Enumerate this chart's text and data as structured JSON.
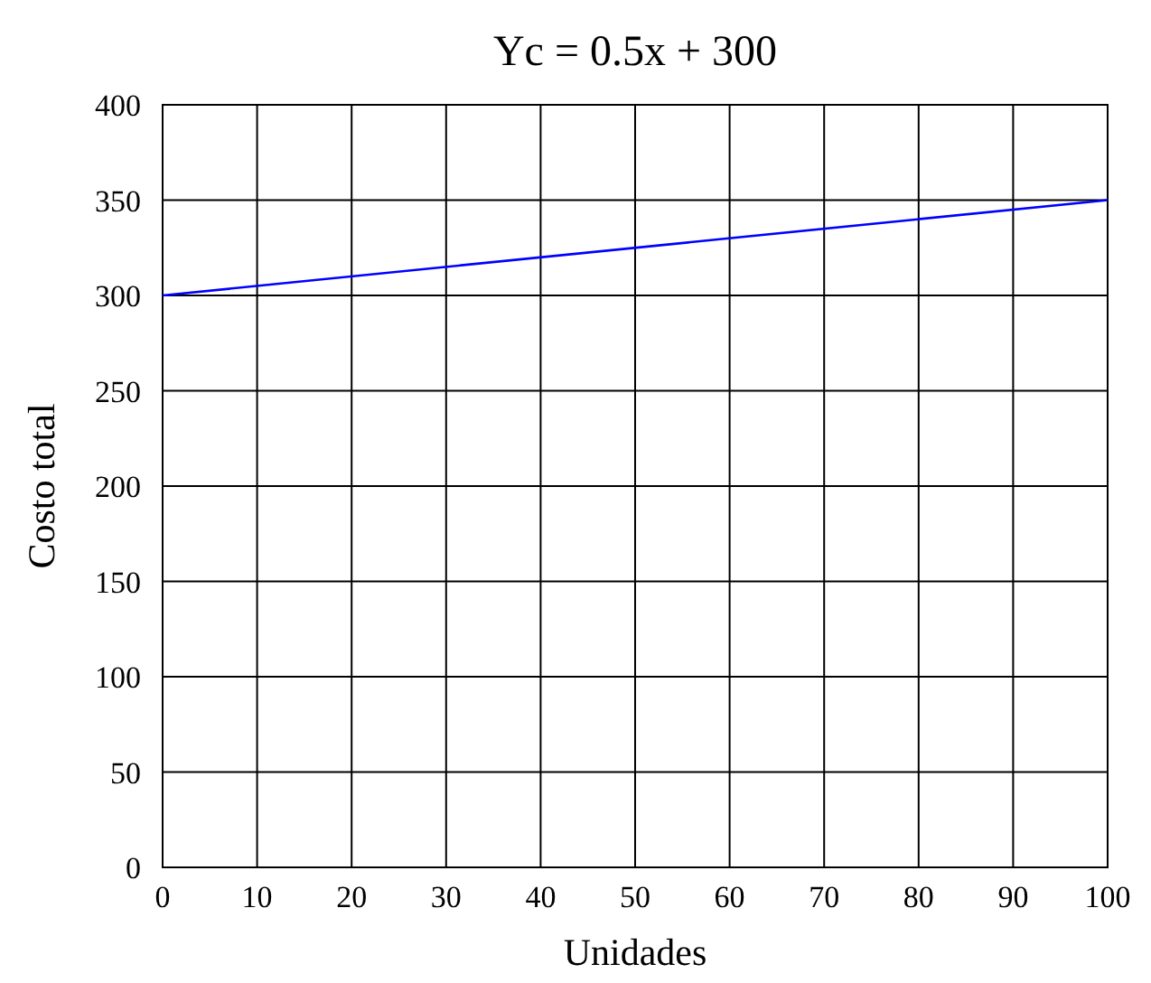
{
  "chart_data": {
    "type": "line",
    "title": "Yc = 0.5x + 300",
    "xlabel": "Unidades",
    "ylabel": "Costo total",
    "x": [
      0,
      100
    ],
    "series": [
      {
        "color": "#0000ff",
        "values": [
          300,
          350
        ]
      }
    ],
    "xlim": [
      0,
      100
    ],
    "xticks": [
      0,
      10,
      20,
      30,
      40,
      50,
      60,
      70,
      80,
      90,
      100
    ],
    "ylim": [
      0,
      400
    ],
    "yticks": [
      0,
      50,
      100,
      150,
      200,
      250,
      300,
      350,
      400
    ],
    "grid": true,
    "marker": "none",
    "line_style": "solid"
  }
}
